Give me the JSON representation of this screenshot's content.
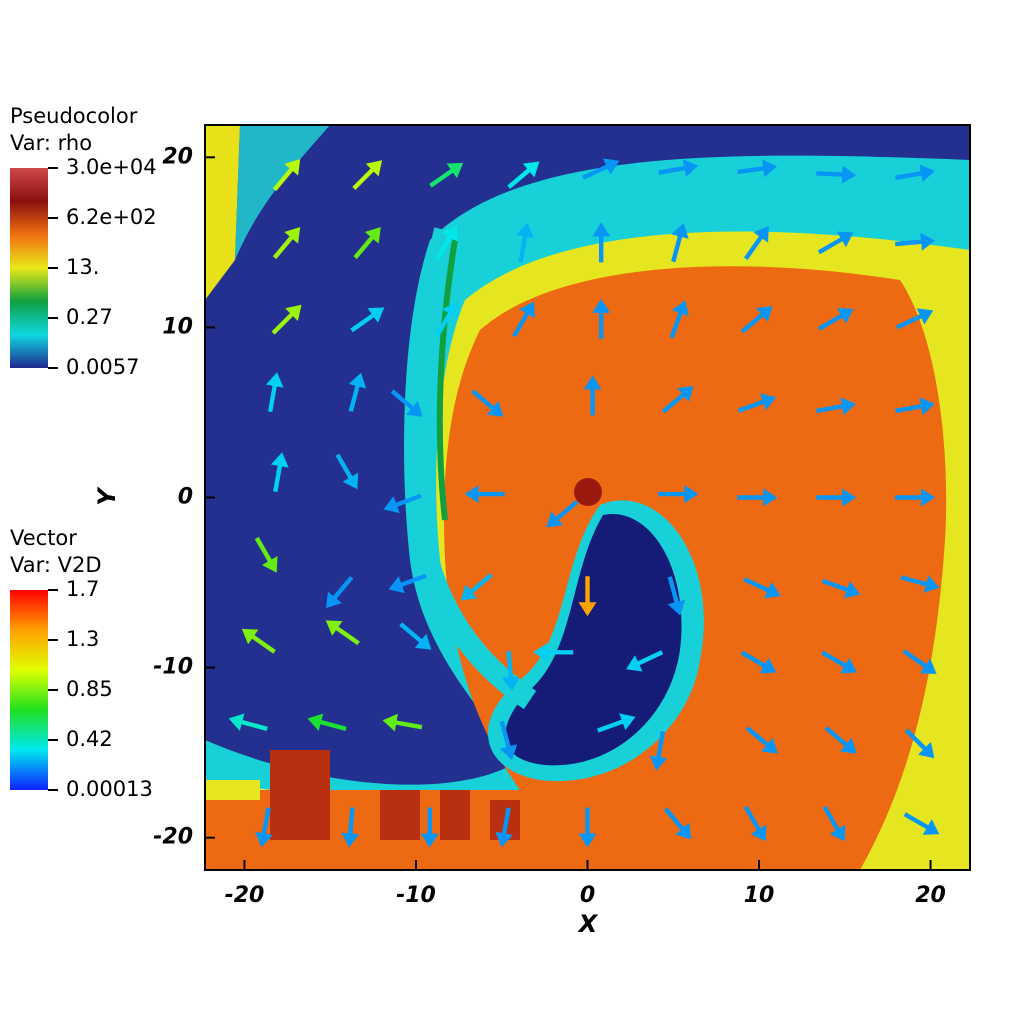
{
  "chart_data": {
    "type": "vector_field",
    "x_label": "X",
    "y_label": "Y",
    "xlim": [
      -22.3,
      22.3
    ],
    "ylim": [
      -21.9,
      21.9
    ],
    "xticks": [
      -20,
      -10,
      0,
      10,
      20
    ],
    "yticks": [
      -20,
      -10,
      0,
      10,
      20
    ],
    "legends": [
      {
        "title": "Pseudocolor",
        "variable": "Var: rho",
        "scale": "log",
        "colors": [
          "#d04848",
          "#8a1010",
          "#f07010",
          "#e8e818",
          "#10a040",
          "#10d8e0",
          "#202890"
        ],
        "ticks": [
          {
            "value": 30000,
            "label": "3.0e+04"
          },
          {
            "value": 620,
            "label": "6.2e+02"
          },
          {
            "value": 13,
            "label": "13."
          },
          0.27,
          0.0057
        ]
      },
      {
        "title": "Vector",
        "variable": "Var: V2D",
        "scale": "linear",
        "colors": [
          "#ff0000",
          "#ffa000",
          "#e0ff00",
          "#20e020",
          "#00e8f0",
          "#1020ff"
        ],
        "ticks": [
          1.7,
          1.3,
          0.85,
          0.42,
          0.00013
        ]
      }
    ],
    "vectors": [
      {
        "x": -17.5,
        "y": 19,
        "angle": 50,
        "magnitude": 0.95
      },
      {
        "x": -12.8,
        "y": 19,
        "angle": 45,
        "magnitude": 0.95
      },
      {
        "x": -8.2,
        "y": 19,
        "angle": 35,
        "magnitude": 0.55
      },
      {
        "x": -3.7,
        "y": 19,
        "angle": 40,
        "magnitude": 0.35
      },
      {
        "x": 0.8,
        "y": 19.3,
        "angle": 25,
        "magnitude": 0.2
      },
      {
        "x": 5.3,
        "y": 19.3,
        "angle": 10,
        "magnitude": 0.2
      },
      {
        "x": 9.9,
        "y": 19.3,
        "angle": 8,
        "magnitude": 0.2
      },
      {
        "x": 14.5,
        "y": 19,
        "angle": -3,
        "magnitude": 0.2
      },
      {
        "x": 19.1,
        "y": 19,
        "angle": 10,
        "magnitude": 0.2
      },
      {
        "x": -17.5,
        "y": 15,
        "angle": 50,
        "magnitude": 0.9
      },
      {
        "x": -12.8,
        "y": 15,
        "angle": 50,
        "magnitude": 0.8
      },
      {
        "x": -8.2,
        "y": 15,
        "angle": 60,
        "magnitude": 0.35
      },
      {
        "x": -3.7,
        "y": 15,
        "angle": 80,
        "magnitude": 0.25
      },
      {
        "x": 0.8,
        "y": 15,
        "angle": 90,
        "magnitude": 0.2
      },
      {
        "x": 5.3,
        "y": 15,
        "angle": 75,
        "magnitude": 0.2
      },
      {
        "x": 9.9,
        "y": 15,
        "angle": 55,
        "magnitude": 0.2
      },
      {
        "x": 14.5,
        "y": 15,
        "angle": 30,
        "magnitude": 0.2
      },
      {
        "x": 19.1,
        "y": 15,
        "angle": 5,
        "magnitude": 0.2
      },
      {
        "x": -17.5,
        "y": 10.5,
        "angle": 45,
        "magnitude": 0.9
      },
      {
        "x": -12.8,
        "y": 10.5,
        "angle": 35,
        "magnitude": 0.3
      },
      {
        "x": -8.2,
        "y": 10.5,
        "angle": 60,
        "magnitude": 0.3
      },
      {
        "x": -3.7,
        "y": 10.5,
        "angle": 60,
        "magnitude": 0.2
      },
      {
        "x": 0.8,
        "y": 10.5,
        "angle": 90,
        "magnitude": 0.2
      },
      {
        "x": 5.3,
        "y": 10.5,
        "angle": 70,
        "magnitude": 0.2
      },
      {
        "x": 9.9,
        "y": 10.5,
        "angle": 40,
        "magnitude": 0.2
      },
      {
        "x": 14.5,
        "y": 10.5,
        "angle": 30,
        "magnitude": 0.2
      },
      {
        "x": 19.1,
        "y": 10.5,
        "angle": 25,
        "magnitude": 0.2
      },
      {
        "x": -18.3,
        "y": 6.2,
        "angle": 80,
        "magnitude": 0.3
      },
      {
        "x": -13.5,
        "y": 6.2,
        "angle": 75,
        "magnitude": 0.25
      },
      {
        "x": -10.5,
        "y": 5.5,
        "angle": -40,
        "magnitude": 0.2
      },
      {
        "x": -5.8,
        "y": 5.5,
        "angle": -40,
        "magnitude": 0.2
      },
      {
        "x": 0.3,
        "y": 6,
        "angle": 90,
        "magnitude": 0.2
      },
      {
        "x": 5.3,
        "y": 5.8,
        "angle": 40,
        "magnitude": 0.2
      },
      {
        "x": 9.9,
        "y": 5.5,
        "angle": 20,
        "magnitude": 0.2
      },
      {
        "x": 14.5,
        "y": 5.3,
        "angle": 10,
        "magnitude": 0.2
      },
      {
        "x": 19.1,
        "y": 5.3,
        "angle": 10,
        "magnitude": 0.2
      },
      {
        "x": -18,
        "y": 1.5,
        "angle": 80,
        "magnitude": 0.3
      },
      {
        "x": -14,
        "y": 1.5,
        "angle": -60,
        "magnitude": 0.25
      },
      {
        "x": -10.8,
        "y": -0.3,
        "angle": 200,
        "magnitude": 0.2
      },
      {
        "x": -6,
        "y": 0.2,
        "angle": 180,
        "magnitude": 0.2
      },
      {
        "x": -1.5,
        "y": -1,
        "angle": 220,
        "magnitude": 0.2
      },
      {
        "x": 5.3,
        "y": 0.2,
        "angle": 0,
        "magnitude": 0.2
      },
      {
        "x": 9.9,
        "y": 0,
        "angle": 0,
        "magnitude": 0.2
      },
      {
        "x": 14.5,
        "y": 0,
        "angle": 0,
        "magnitude": 0.2
      },
      {
        "x": 19.1,
        "y": 0,
        "angle": 0,
        "magnitude": 0.2
      },
      {
        "x": -18.7,
        "y": -3.4,
        "angle": -60,
        "magnitude": 0.8
      },
      {
        "x": -14.5,
        "y": -5.6,
        "angle": 230,
        "magnitude": 0.2
      },
      {
        "x": -10.5,
        "y": -5,
        "angle": 200,
        "magnitude": 0.2
      },
      {
        "x": -6.5,
        "y": -5.3,
        "angle": 220,
        "magnitude": 0.25
      },
      {
        "x": 0,
        "y": -5.8,
        "angle": -90,
        "magnitude": 1.35
      },
      {
        "x": 5.1,
        "y": -5.8,
        "angle": -75,
        "magnitude": 0.2
      },
      {
        "x": 10.2,
        "y": -5.3,
        "angle": -25,
        "magnitude": 0.2
      },
      {
        "x": 14.8,
        "y": -5.3,
        "angle": -20,
        "magnitude": 0.2
      },
      {
        "x": 19.4,
        "y": -5,
        "angle": -15,
        "magnitude": 0.2
      },
      {
        "x": -19.2,
        "y": -8.4,
        "angle": 145,
        "magnitude": 0.85
      },
      {
        "x": -14.3,
        "y": -7.9,
        "angle": 145,
        "magnitude": 0.85
      },
      {
        "x": -10,
        "y": -8.2,
        "angle": -40,
        "magnitude": 0.25
      },
      {
        "x": -4.5,
        "y": -10.2,
        "angle": -85,
        "magnitude": 0.25
      },
      {
        "x": -2,
        "y": -9.1,
        "angle": 180,
        "magnitude": 0.3
      },
      {
        "x": 3.3,
        "y": -9.6,
        "angle": 205,
        "magnitude": 0.3
      },
      {
        "x": 10,
        "y": -9.7,
        "angle": -30,
        "magnitude": 0.2
      },
      {
        "x": 14.7,
        "y": -9.7,
        "angle": -30,
        "magnitude": 0.2
      },
      {
        "x": 19.4,
        "y": -9.7,
        "angle": -35,
        "magnitude": 0.2
      },
      {
        "x": -19.8,
        "y": -13.3,
        "angle": 165,
        "magnitude": 0.4
      },
      {
        "x": -15.2,
        "y": -13.3,
        "angle": 165,
        "magnitude": 0.65
      },
      {
        "x": -10.8,
        "y": -13.3,
        "angle": 170,
        "magnitude": 0.8
      },
      {
        "x": -4.7,
        "y": -14.3,
        "angle": -75,
        "magnitude": 0.2
      },
      {
        "x": 1.7,
        "y": -13.3,
        "angle": 20,
        "magnitude": 0.3
      },
      {
        "x": 4.2,
        "y": -14.9,
        "angle": -100,
        "magnitude": 0.2
      },
      {
        "x": 10.2,
        "y": -14.3,
        "angle": -40,
        "magnitude": 0.2
      },
      {
        "x": 14.8,
        "y": -14.3,
        "angle": -40,
        "magnitude": 0.2
      },
      {
        "x": 19.4,
        "y": -14.5,
        "angle": -45,
        "magnitude": 0.2
      },
      {
        "x": -18.8,
        "y": -19.4,
        "angle": -100,
        "magnitude": 0.2
      },
      {
        "x": -13.8,
        "y": -19.4,
        "angle": -95,
        "magnitude": 0.2
      },
      {
        "x": -9.2,
        "y": -19.4,
        "angle": -90,
        "magnitude": 0.2
      },
      {
        "x": -4.8,
        "y": -19.4,
        "angle": -100,
        "magnitude": 0.2
      },
      {
        "x": 0,
        "y": -19.4,
        "angle": -90,
        "magnitude": 0.2
      },
      {
        "x": 5.3,
        "y": -19.2,
        "angle": -50,
        "magnitude": 0.2
      },
      {
        "x": 9.8,
        "y": -19.2,
        "angle": -60,
        "magnitude": 0.2
      },
      {
        "x": 14.4,
        "y": -19.2,
        "angle": -60,
        "magnitude": 0.2
      },
      {
        "x": 19.5,
        "y": -19.2,
        "angle": -30,
        "magnitude": 0.2
      }
    ]
  }
}
